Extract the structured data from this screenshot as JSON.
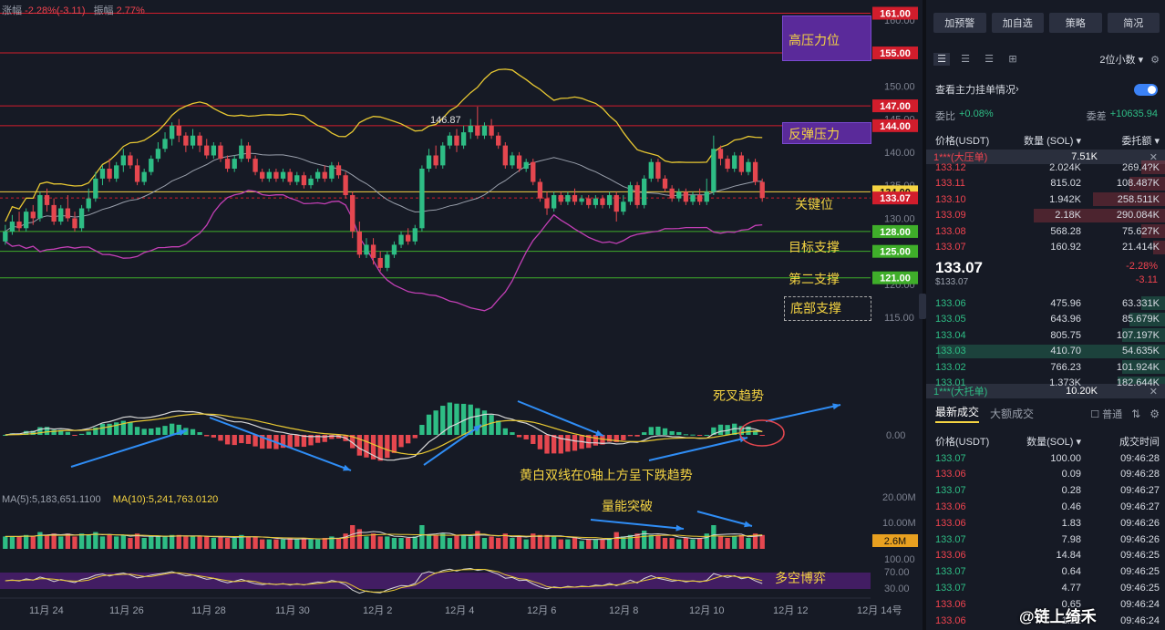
{
  "header": {
    "change_label": "涨幅",
    "change_value": "-2.28%(-3.11)",
    "amp_label": "振幅",
    "amp_value": "2.77%"
  },
  "ma_line": {
    "ma5": "MA(5):5,183,651.1100",
    "ma10": "MA(10):5,241,763.0120"
  },
  "price_axis": {
    "ticks": [
      "160.00",
      "155.00",
      "150.00",
      "145.00",
      "140.00",
      "135.00",
      "130.00",
      "125.00",
      "120.00",
      "115.00"
    ],
    "highlights": [
      {
        "value": 161,
        "label": "161.00",
        "color": "#d11d2c"
      },
      {
        "value": 155,
        "label": "155.00",
        "color": "#d11d2c"
      },
      {
        "value": 147,
        "label": "147.00",
        "color": "#d11d2c"
      },
      {
        "value": 144,
        "label": "144.00",
        "color": "#d11d2c"
      },
      {
        "value": 134,
        "label": "134.00",
        "color": "#f5d442"
      },
      {
        "value": 133.07,
        "label": "133.07",
        "color": "#d11d2c"
      },
      {
        "value": 128,
        "label": "128.00",
        "color": "#3fae2a"
      },
      {
        "value": 125,
        "label": "125.00",
        "color": "#3fae2a"
      },
      {
        "value": 121,
        "label": "121.00",
        "color": "#3fae2a"
      }
    ]
  },
  "macd_axis": {
    "zero": "0.00"
  },
  "vol_axis": {
    "ticks": [
      "20.00M",
      "10.00M"
    ],
    "current": "2.6M"
  },
  "osc_axis": {
    "ticks": [
      "100.00",
      "70.00",
      "30.00"
    ]
  },
  "annotations": {
    "high_pressure": "高压力位",
    "rebound_pressure": "反弹压力",
    "key_level": "关键位",
    "target_support": "目标支撑",
    "second_support": "第二支撑",
    "bottom_support": "底部支撑",
    "peak_price": "146.87",
    "death_cross": "死叉趋势",
    "macd_note": "黄白双线在0轴上方呈下跌趋势",
    "volume_break": "量能突破",
    "bull_bear": "多空博弈"
  },
  "x_axis": [
    "11月 24",
    "11月 26",
    "11月 28",
    "11月 30",
    "12月 2",
    "12月 4",
    "12月 6",
    "12月 8",
    "12月 10",
    "12月 12",
    "12月 14号"
  ],
  "watermark": "@链上绮禾",
  "chart_data": {
    "type": "candlestick",
    "title": "",
    "y_range": [
      112,
      163
    ],
    "candles": [
      [
        126.5,
        128.0,
        126.0,
        129.0
      ],
      [
        128.0,
        129.5,
        127.5,
        130.5
      ],
      [
        129.5,
        128.5,
        128.0,
        131.0
      ],
      [
        128.5,
        131.0,
        128.0,
        131.5
      ],
      [
        131.0,
        130.0,
        129.0,
        132.0
      ],
      [
        130.0,
        133.5,
        129.5,
        134.0
      ],
      [
        133.5,
        132.0,
        131.0,
        134.5
      ],
      [
        132.0,
        129.5,
        129.0,
        133.0
      ],
      [
        129.5,
        131.5,
        129.0,
        132.0
      ],
      [
        131.5,
        130.0,
        129.5,
        133.5
      ],
      [
        130.0,
        128.5,
        128.0,
        131.0
      ],
      [
        128.5,
        131.5,
        128.0,
        132.0
      ],
      [
        131.5,
        133.0,
        131.0,
        134.5
      ],
      [
        133.0,
        136.0,
        132.5,
        137.0
      ],
      [
        136.0,
        137.5,
        135.0,
        138.0
      ],
      [
        137.5,
        136.0,
        135.5,
        139.0
      ],
      [
        136.0,
        138.0,
        135.5,
        138.5
      ],
      [
        138.0,
        139.5,
        137.0,
        140.5
      ],
      [
        139.5,
        138.0,
        137.5,
        140.0
      ],
      [
        138.0,
        135.5,
        135.0,
        139.0
      ],
      [
        135.5,
        137.0,
        135.0,
        137.5
      ],
      [
        137.0,
        139.0,
        136.5,
        139.5
      ],
      [
        139.0,
        140.5,
        138.5,
        141.5
      ],
      [
        140.5,
        142.0,
        140.0,
        143.0
      ],
      [
        142.0,
        144.0,
        141.0,
        144.5
      ],
      [
        144.0,
        142.5,
        141.5,
        145.0
      ],
      [
        142.5,
        141.0,
        140.0,
        143.0
      ],
      [
        141.0,
        142.5,
        140.5,
        143.5
      ],
      [
        142.5,
        141.0,
        140.0,
        143.0
      ],
      [
        141.0,
        139.5,
        139.0,
        142.0
      ],
      [
        139.5,
        141.0,
        139.0,
        141.5
      ],
      [
        141.0,
        139.0,
        138.5,
        141.5
      ],
      [
        139.0,
        137.5,
        137.0,
        139.5
      ],
      [
        137.5,
        139.0,
        137.0,
        139.5
      ],
      [
        139.0,
        141.0,
        138.5,
        142.0
      ],
      [
        141.0,
        139.0,
        138.5,
        141.5
      ],
      [
        139.0,
        137.0,
        136.5,
        139.5
      ],
      [
        137.0,
        136.0,
        135.5,
        137.5
      ],
      [
        136.0,
        137.0,
        135.5,
        137.5
      ],
      [
        137.0,
        136.0,
        135.5,
        137.5
      ],
      [
        136.0,
        137.0,
        135.5,
        137.5
      ],
      [
        137.0,
        135.5,
        135.0,
        137.5
      ],
      [
        135.5,
        136.5,
        135.0,
        137.0
      ],
      [
        136.5,
        135.0,
        134.5,
        137.0
      ],
      [
        135.0,
        136.0,
        134.5,
        136.5
      ],
      [
        136.0,
        137.0,
        135.5,
        137.5
      ],
      [
        137.0,
        136.0,
        135.5,
        138.0
      ],
      [
        136.0,
        138.0,
        135.5,
        138.5
      ],
      [
        138.0,
        136.5,
        136.0,
        138.5
      ],
      [
        136.5,
        133.5,
        133.0,
        137.0
      ],
      [
        133.5,
        128.0,
        127.0,
        134.0
      ],
      [
        128.0,
        124.5,
        124.0,
        129.5
      ],
      [
        124.5,
        126.0,
        124.0,
        127.0
      ],
      [
        126.0,
        124.0,
        123.0,
        127.0
      ],
      [
        124.0,
        122.5,
        122.0,
        125.0
      ],
      [
        122.5,
        124.5,
        122.0,
        125.0
      ],
      [
        124.5,
        126.0,
        124.0,
        126.5
      ],
      [
        126.0,
        127.5,
        125.5,
        128.0
      ],
      [
        127.5,
        126.5,
        126.0,
        128.5
      ],
      [
        126.5,
        128.5,
        126.0,
        129.0
      ],
      [
        128.5,
        137.5,
        128.0,
        138.0
      ],
      [
        137.5,
        139.5,
        137.0,
        140.5
      ],
      [
        139.5,
        138.0,
        137.5,
        141.0
      ],
      [
        138.0,
        141.0,
        137.5,
        141.5
      ],
      [
        141.0,
        142.5,
        140.5,
        143.0
      ],
      [
        142.5,
        141.0,
        140.0,
        143.5
      ],
      [
        141.0,
        143.0,
        140.5,
        144.0
      ],
      [
        143.0,
        144.0,
        142.0,
        145.0
      ],
      [
        144.0,
        142.5,
        142.0,
        146.87
      ],
      [
        142.5,
        144.0,
        142.0,
        144.5
      ],
      [
        144.0,
        142.5,
        142.0,
        145.0
      ],
      [
        142.5,
        141.0,
        140.5,
        143.0
      ],
      [
        141.0,
        138.0,
        137.5,
        141.5
      ],
      [
        138.0,
        139.5,
        137.5,
        140.0
      ],
      [
        139.5,
        137.5,
        137.0,
        140.0
      ],
      [
        137.5,
        138.5,
        137.0,
        139.0
      ],
      [
        138.5,
        135.5,
        135.0,
        139.0
      ],
      [
        135.5,
        133.0,
        132.5,
        136.0
      ],
      [
        133.0,
        131.5,
        130.5,
        134.0
      ],
      [
        131.5,
        133.5,
        131.0,
        134.0
      ],
      [
        133.5,
        132.5,
        132.0,
        134.0
      ],
      [
        132.5,
        133.5,
        132.0,
        134.0
      ],
      [
        133.5,
        132.5,
        132.0,
        134.5
      ],
      [
        132.5,
        133.0,
        132.0,
        133.5
      ],
      [
        133.0,
        132.0,
        131.5,
        133.5
      ],
      [
        132.0,
        133.0,
        131.5,
        133.5
      ],
      [
        133.0,
        132.0,
        131.5,
        133.5
      ],
      [
        132.0,
        133.5,
        131.5,
        134.0
      ],
      [
        133.5,
        131.0,
        129.5,
        134.0
      ],
      [
        131.0,
        132.5,
        130.5,
        133.5
      ],
      [
        132.5,
        135.0,
        132.0,
        135.5
      ],
      [
        135.0,
        132.0,
        131.5,
        135.5
      ],
      [
        132.0,
        136.0,
        131.5,
        136.5
      ],
      [
        136.0,
        138.5,
        135.5,
        139.0
      ],
      [
        138.5,
        136.0,
        135.5,
        139.0
      ],
      [
        136.0,
        134.5,
        134.0,
        136.5
      ],
      [
        134.5,
        133.0,
        132.5,
        135.0
      ],
      [
        133.0,
        134.0,
        132.5,
        134.5
      ],
      [
        134.0,
        132.5,
        132.0,
        134.5
      ],
      [
        132.5,
        133.5,
        132.0,
        134.0
      ],
      [
        133.5,
        132.5,
        132.0,
        134.5
      ],
      [
        132.5,
        134.0,
        132.0,
        136.0
      ],
      [
        134.0,
        140.5,
        133.5,
        142.5
      ],
      [
        140.5,
        139.0,
        138.0,
        141.0
      ],
      [
        139.0,
        137.5,
        137.0,
        139.5
      ],
      [
        137.5,
        139.5,
        137.0,
        140.0
      ],
      [
        139.5,
        137.0,
        136.5,
        140.0
      ],
      [
        137.0,
        138.5,
        136.5,
        139.0
      ],
      [
        138.5,
        135.5,
        135.0,
        139.0
      ],
      [
        135.5,
        133.07,
        132.5,
        136.0
      ]
    ]
  },
  "right_panel": {
    "top_buttons": [
      "加预警",
      "加自选",
      "策略",
      "简况"
    ],
    "precision": "2位小数",
    "depth_label": "查看主力挂单情况",
    "ratio": {
      "label": "委比",
      "value": "+0.08%",
      "diff_label": "委差",
      "diff_value": "+10635.94"
    },
    "ob_headers": [
      "价格(USDT)",
      "数量 (SOL)",
      "委托额"
    ],
    "ask_banner": {
      "name": "1***(大压单)",
      "value": "7.51K"
    },
    "asks": [
      {
        "p": "133.12",
        "q": "2.024K",
        "t": "269.4?K",
        "w": 0.1
      },
      {
        "p": "133.11",
        "q": "815.02",
        "t": "108.487K",
        "w": 0.15
      },
      {
        "p": "133.10",
        "q": "1.942K",
        "t": "258.511K",
        "w": 0.3
      },
      {
        "p": "133.09",
        "q": "2.18K",
        "t": "290.084K",
        "w": 0.55
      },
      {
        "p": "133.08",
        "q": "568.28",
        "t": "75.627K",
        "w": 0.1
      },
      {
        "p": "133.07",
        "q": "160.92",
        "t": "21.414K",
        "w": 0.05
      }
    ],
    "mid": {
      "price": "133.07",
      "sub": "$133.07",
      "pct": "-2.28%",
      "chg": "-3.11"
    },
    "bids": [
      {
        "p": "133.06",
        "q": "475.96",
        "t": "63.331K",
        "w": 0.1
      },
      {
        "p": "133.05",
        "q": "643.96",
        "t": "85.679K",
        "w": 0.15
      },
      {
        "p": "133.04",
        "q": "805.75",
        "t": "107.197K",
        "w": 0.18
      },
      {
        "p": "133.03",
        "q": "410.70",
        "t": "54.635K",
        "w": 0.95
      },
      {
        "p": "133.02",
        "q": "766.23",
        "t": "101.924K",
        "w": 0.18
      },
      {
        "p": "133.01",
        "q": "1.373K",
        "t": "182.644K",
        "w": 0.2
      }
    ],
    "bid_banner": {
      "name": "1***(大托单)",
      "value": "10.20K"
    },
    "trade_tabs": {
      "latest": "最新成交",
      "big": "大额成交",
      "normal": "普通"
    },
    "trade_headers": [
      "价格(USDT)",
      "数量(SOL)",
      "成交时间"
    ],
    "trades": [
      {
        "p": "133.07",
        "q": "100.00",
        "t": "09:46:28",
        "s": "g"
      },
      {
        "p": "133.06",
        "q": "0.09",
        "t": "09:46:28",
        "s": "r"
      },
      {
        "p": "133.07",
        "q": "0.28",
        "t": "09:46:27",
        "s": "g"
      },
      {
        "p": "133.06",
        "q": "0.46",
        "t": "09:46:27",
        "s": "r"
      },
      {
        "p": "133.06",
        "q": "1.83",
        "t": "09:46:26",
        "s": "r"
      },
      {
        "p": "133.07",
        "q": "7.98",
        "t": "09:46:26",
        "s": "g"
      },
      {
        "p": "133.06",
        "q": "14.84",
        "t": "09:46:25",
        "s": "r"
      },
      {
        "p": "133.07",
        "q": "0.64",
        "t": "09:46:25",
        "s": "g"
      },
      {
        "p": "133.07",
        "q": "4.77",
        "t": "09:46:25",
        "s": "g"
      },
      {
        "p": "133.06",
        "q": "0.65",
        "t": "09:46:24",
        "s": "r"
      },
      {
        "p": "133.06",
        "q": "1.22",
        "t": "09:46:24",
        "s": "r"
      }
    ]
  }
}
